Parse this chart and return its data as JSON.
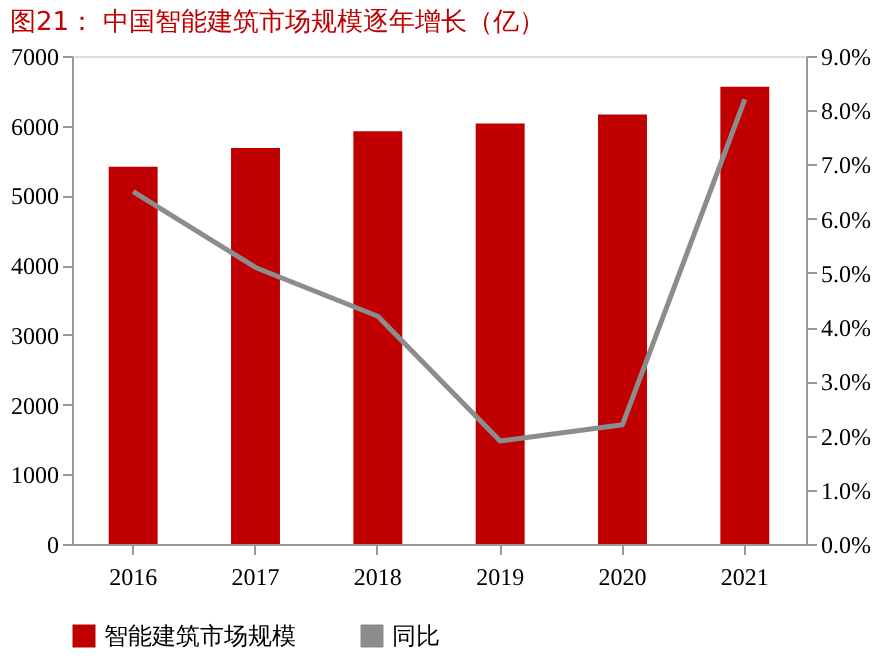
{
  "chart_data": {
    "type": "bar",
    "title": "图21：  中国智能建筑市场规模逐年增长（亿）",
    "categories": [
      "2016",
      "2017",
      "2018",
      "2019",
      "2020",
      "2021"
    ],
    "series": [
      {
        "name": "智能建筑市场规模",
        "color": "#c00000",
        "values": [
          5410,
          5680,
          5920,
          6030,
          6160,
          6560
        ]
      },
      {
        "name": "同比",
        "type": "line",
        "axis": "y2",
        "color": "#8c8c8c",
        "values": [
          6.5,
          5.1,
          4.2,
          1.9,
          2.2,
          8.2
        ]
      }
    ],
    "ylim": [
      0,
      7000
    ],
    "yticks": [
      0,
      1000,
      2000,
      3000,
      4000,
      5000,
      6000,
      7000
    ],
    "y2lim": [
      0,
      9
    ],
    "y2ticks": [
      {
        "value": 0,
        "label": "0.0%"
      },
      {
        "value": 1,
        "label": "1.0%"
      },
      {
        "value": 2,
        "label": "2.0%"
      },
      {
        "value": 3,
        "label": "3.0%"
      },
      {
        "value": 4,
        "label": "4.0%"
      },
      {
        "value": 5,
        "label": "5.0%"
      },
      {
        "value": 6,
        "label": "6.0%"
      },
      {
        "value": 7,
        "label": "7.0%"
      },
      {
        "value": 8,
        "label": "8.0%"
      },
      {
        "value": 9,
        "label": "9.0%"
      }
    ],
    "grid": false,
    "legend": "bottom",
    "marker": "none",
    "line_style": "solid"
  }
}
